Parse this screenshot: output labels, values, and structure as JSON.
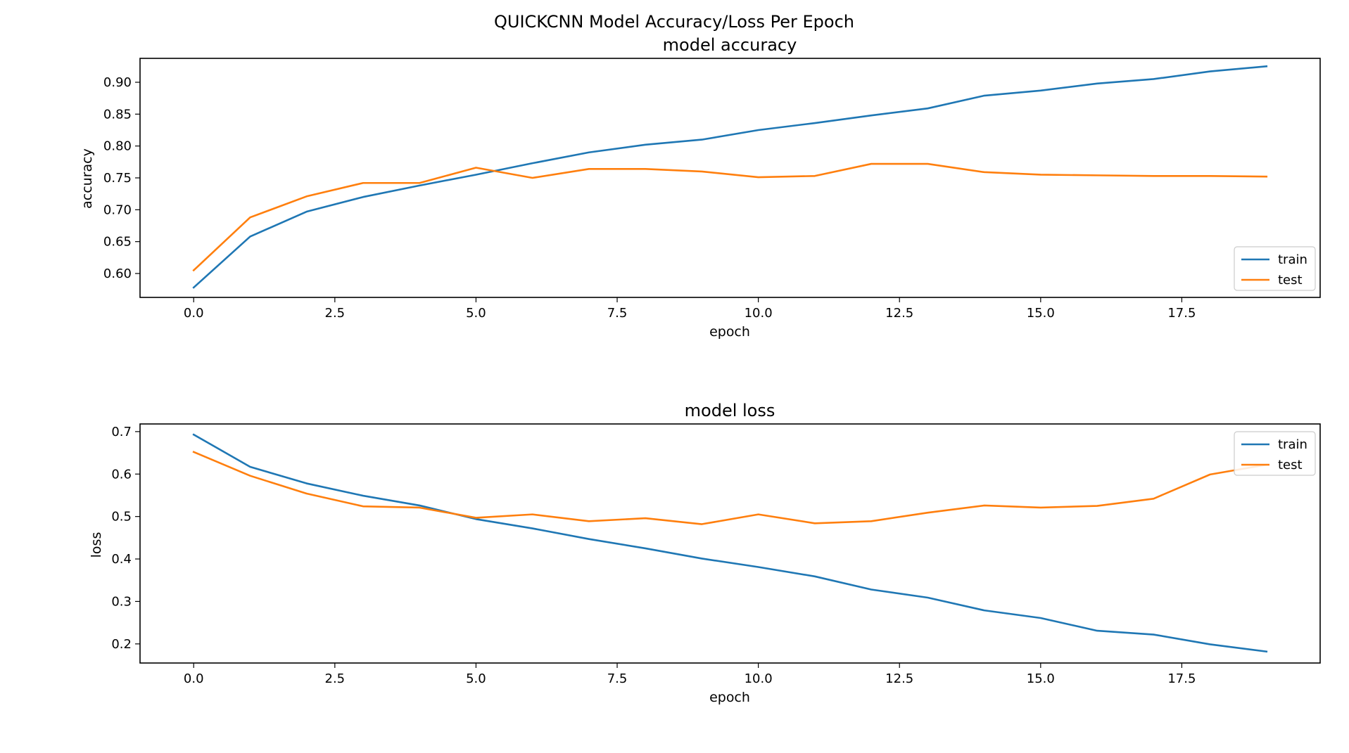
{
  "figure": {
    "suptitle": "QUICKCNN Model Accuracy/Loss Per Epoch"
  },
  "colors": {
    "train": "#1f77b4",
    "test": "#ff7f0e"
  },
  "chart_data": [
    {
      "type": "line",
      "title": "model accuracy",
      "xlabel": "epoch",
      "ylabel": "accuracy",
      "x": [
        0,
        1,
        2,
        3,
        4,
        5,
        6,
        7,
        8,
        9,
        10,
        11,
        12,
        13,
        14,
        15,
        16,
        17,
        18,
        19
      ],
      "xlim": [
        -0.95,
        19.95
      ],
      "ylim": [
        0.5625,
        0.9375
      ],
      "xticks": [
        0.0,
        2.5,
        5.0,
        7.5,
        10.0,
        12.5,
        15.0,
        17.5
      ],
      "xtick_labels": [
        "0.0",
        "2.5",
        "5.0",
        "7.5",
        "10.0",
        "12.5",
        "15.0",
        "17.5"
      ],
      "yticks": [
        0.6,
        0.65,
        0.7,
        0.75,
        0.8,
        0.85,
        0.9
      ],
      "ytick_labels": [
        "0.60",
        "0.65",
        "0.70",
        "0.75",
        "0.80",
        "0.85",
        "0.90"
      ],
      "legend_position": "lower-right",
      "grid": false,
      "series": [
        {
          "name": "train",
          "values": [
            0.578,
            0.658,
            0.697,
            0.72,
            0.738,
            0.755,
            0.773,
            0.79,
            0.802,
            0.81,
            0.825,
            0.836,
            0.848,
            0.859,
            0.879,
            0.887,
            0.898,
            0.905,
            0.917,
            0.925
          ]
        },
        {
          "name": "test",
          "values": [
            0.605,
            0.688,
            0.721,
            0.742,
            0.742,
            0.766,
            0.75,
            0.764,
            0.764,
            0.76,
            0.751,
            0.753,
            0.772,
            0.772,
            0.759,
            0.755,
            0.754,
            0.753,
            0.753,
            0.752
          ]
        }
      ]
    },
    {
      "type": "line",
      "title": "model loss",
      "xlabel": "epoch",
      "ylabel": "loss",
      "x": [
        0,
        1,
        2,
        3,
        4,
        5,
        6,
        7,
        8,
        9,
        10,
        11,
        12,
        13,
        14,
        15,
        16,
        17,
        18,
        19
      ],
      "xlim": [
        -0.95,
        19.95
      ],
      "ylim": [
        0.155,
        0.718
      ],
      "xticks": [
        0.0,
        2.5,
        5.0,
        7.5,
        10.0,
        12.5,
        15.0,
        17.5
      ],
      "xtick_labels": [
        "0.0",
        "2.5",
        "5.0",
        "7.5",
        "10.0",
        "12.5",
        "15.0",
        "17.5"
      ],
      "yticks": [
        0.2,
        0.3,
        0.4,
        0.5,
        0.6,
        0.7
      ],
      "ytick_labels": [
        "0.2",
        "0.3",
        "0.4",
        "0.5",
        "0.6",
        "0.7"
      ],
      "legend_position": "upper-right",
      "grid": false,
      "series": [
        {
          "name": "train",
          "values": [
            0.693,
            0.617,
            0.578,
            0.549,
            0.526,
            0.494,
            0.472,
            0.447,
            0.425,
            0.401,
            0.381,
            0.359,
            0.328,
            0.309,
            0.279,
            0.261,
            0.231,
            0.222,
            0.199,
            0.182
          ]
        },
        {
          "name": "test",
          "values": [
            0.652,
            0.596,
            0.554,
            0.524,
            0.521,
            0.497,
            0.505,
            0.489,
            0.496,
            0.482,
            0.505,
            0.484,
            0.489,
            0.509,
            0.526,
            0.521,
            0.525,
            0.542,
            0.599,
            0.622
          ]
        }
      ]
    }
  ]
}
